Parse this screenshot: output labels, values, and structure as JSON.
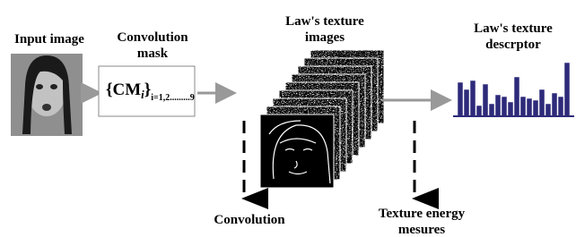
{
  "labels": {
    "input": "Input image",
    "mask": {
      "lines": [
        "Convolution",
        "mask"
      ]
    },
    "texture_images": {
      "lines": [
        "Law's texture",
        "images"
      ]
    },
    "descriptor": {
      "lines": [
        "Law's texture",
        "descrptor"
      ]
    },
    "convolution": "Convolution",
    "energy": {
      "lines": [
        "Texture energy",
        "mesures"
      ]
    }
  },
  "formula": {
    "open": "{CM",
    "index": "i",
    "close": "}",
    "subscript": "i=1,2.........9"
  }
}
